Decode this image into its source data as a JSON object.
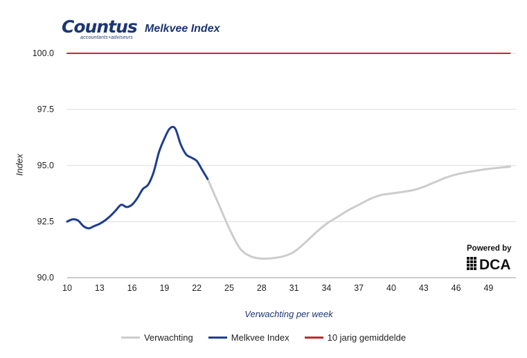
{
  "logo": {
    "name": "Countus",
    "tagline": "accountants+adviseurs"
  },
  "dca": {
    "powered_by": "Powered by",
    "name": "DCA"
  },
  "chart_data": {
    "type": "line",
    "title": "Melkvee Index",
    "xlabel": "Verwachting per week",
    "ylabel": "Index",
    "x_ticks": [
      10,
      13,
      16,
      19,
      22,
      25,
      28,
      31,
      34,
      37,
      40,
      43,
      46,
      49
    ],
    "xlim": [
      10,
      52
    ],
    "y_ticks": [
      "90.0",
      "92.5",
      "95.0",
      "97.5",
      "100.0"
    ],
    "ylim": [
      90,
      100
    ],
    "grid": true,
    "legend_position": "bottom",
    "series": [
      {
        "name": "Verwachting",
        "color": "#cccccc",
        "x": [
          23,
          24,
          25,
          26,
          27,
          28,
          29,
          30,
          31,
          32,
          33,
          34,
          35,
          36,
          37,
          38,
          39,
          40,
          41,
          42,
          43,
          44,
          45,
          46,
          47,
          48,
          49,
          50,
          51
        ],
        "y": [
          94.4,
          93.3,
          92.2,
          91.3,
          90.95,
          90.85,
          90.87,
          90.95,
          91.15,
          91.55,
          92.0,
          92.4,
          92.7,
          93.0,
          93.25,
          93.5,
          93.68,
          93.75,
          93.82,
          93.9,
          94.05,
          94.25,
          94.45,
          94.6,
          94.7,
          94.78,
          94.85,
          94.9,
          94.95
        ]
      },
      {
        "name": "Melkvee Index",
        "color": "#1d3d8f",
        "x": [
          10,
          10.5,
          11,
          11.5,
          12,
          12.5,
          13,
          13.5,
          14,
          14.5,
          15,
          15.5,
          16,
          16.5,
          17,
          17.5,
          18,
          18.5,
          19,
          19.5,
          20,
          20.5,
          21,
          21.5,
          22,
          22.5,
          23
        ],
        "y": [
          92.5,
          92.6,
          92.55,
          92.3,
          92.2,
          92.3,
          92.4,
          92.55,
          92.75,
          93.0,
          93.25,
          93.15,
          93.25,
          93.55,
          93.95,
          94.15,
          94.7,
          95.6,
          96.2,
          96.65,
          96.65,
          95.95,
          95.5,
          95.35,
          95.2,
          94.8,
          94.4
        ]
      },
      {
        "name": "10 jarig gemiddelde",
        "color": "#c62828",
        "x": [
          10,
          51
        ],
        "y": [
          100,
          100
        ]
      }
    ]
  }
}
